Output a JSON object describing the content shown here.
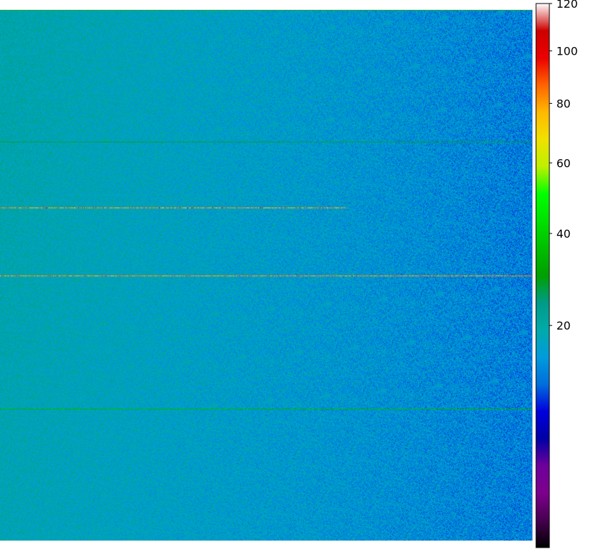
{
  "chart_data": {
    "type": "heatmap",
    "title": "",
    "xlabel": "",
    "ylabel": "",
    "colormap": "nipy_spectral",
    "color_scale": "sqrt",
    "vmin": 0,
    "vmax": 120,
    "colorbar_ticks": [
      20,
      40,
      60,
      80,
      100,
      120
    ],
    "colorbar_tick_labels": [
      "20",
      "40",
      "60",
      "80",
      "100",
      "120"
    ],
    "typical_value_range": [
      10,
      24
    ],
    "gradient": "values higher on left and in upper rows, lower toward right",
    "hot_row_segment": {
      "row_fraction": 0.372,
      "x_fraction_end": 0.65,
      "values": [
        60,
        120
      ]
    },
    "bright_rows": [
      {
        "row_fraction": 0.249,
        "value": 28
      },
      {
        "row_fraction": 0.501,
        "value": 80
      },
      {
        "row_fraction": 0.751,
        "value": 35
      }
    ],
    "top_row_value": 45
  }
}
